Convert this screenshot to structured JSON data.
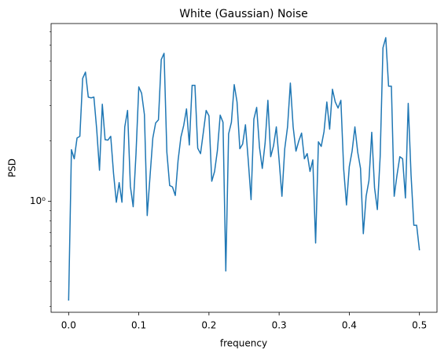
{
  "chart_data": {
    "type": "line",
    "title": "White (Gaussian) Noise",
    "xlabel": "frequency",
    "ylabel": "PSD",
    "yscale": "log",
    "color": "#1f77b4",
    "xlim": [
      -0.025,
      0.525
    ],
    "xticks": [
      {
        "value": 0,
        "label": "0.0"
      },
      0.1,
      0.2,
      0.3,
      0.4,
      0.5
    ],
    "ylim": [
      0.28,
      7.7
    ],
    "yticks": [
      {
        "value": 1,
        "label": "10⁰"
      }
    ],
    "yminorticks": [
      0.3,
      0.4,
      0.5,
      0.6,
      0.7,
      0.8,
      0.9,
      2,
      3,
      4,
      5,
      6,
      7
    ],
    "x": [
      0,
      0.004,
      0.008,
      0.012,
      0.016,
      0.02,
      0.024,
      0.028,
      0.032,
      0.036,
      0.04,
      0.044,
      0.048,
      0.052,
      0.056,
      0.06,
      0.064,
      0.068,
      0.072,
      0.076,
      0.08,
      0.084,
      0.088,
      0.092,
      0.096,
      0.1,
      0.104,
      0.108,
      0.112,
      0.116,
      0.12,
      0.124,
      0.128,
      0.132,
      0.136,
      0.14,
      0.144,
      0.148,
      0.152,
      0.156,
      0.16,
      0.164,
      0.168,
      0.172,
      0.176,
      0.18,
      0.184,
      0.188,
      0.192,
      0.196,
      0.2,
      0.204,
      0.208,
      0.212,
      0.216,
      0.22,
      0.224,
      0.228,
      0.232,
      0.236,
      0.24,
      0.244,
      0.248,
      0.252,
      0.256,
      0.26,
      0.264,
      0.268,
      0.272,
      0.276,
      0.28,
      0.284,
      0.288,
      0.292,
      0.296,
      0.3,
      0.304,
      0.308,
      0.312,
      0.316,
      0.32,
      0.324,
      0.328,
      0.332,
      0.336,
      0.34,
      0.344,
      0.348,
      0.352,
      0.356,
      0.36,
      0.364,
      0.368,
      0.372,
      0.376,
      0.38,
      0.384,
      0.388,
      0.392,
      0.396,
      0.4,
      0.404,
      0.408,
      0.412,
      0.416,
      0.42,
      0.424,
      0.428,
      0.432,
      0.436,
      0.44,
      0.444,
      0.448,
      0.452,
      0.456,
      0.46,
      0.464,
      0.468,
      0.472,
      0.476,
      0.48,
      0.484,
      0.488,
      0.492,
      0.496,
      0.5
    ],
    "values": [
      0.32,
      1.81,
      1.63,
      2.07,
      2.11,
      4.1,
      4.41,
      3.31,
      3.28,
      3.31,
      2.29,
      1.43,
      3.05,
      2.03,
      2.02,
      2.11,
      1.38,
      0.99,
      1.24,
      0.99,
      2.35,
      2.84,
      1.19,
      0.94,
      1.72,
      3.72,
      3.46,
      2.71,
      0.85,
      1.33,
      2.07,
      2.46,
      2.55,
      5.09,
      5.47,
      1.76,
      1.2,
      1.18,
      1.07,
      1.6,
      2.09,
      2.39,
      2.89,
      1.91,
      3.79,
      3.79,
      1.84,
      1.73,
      2.21,
      2.84,
      2.67,
      1.26,
      1.41,
      1.79,
      2.69,
      2.48,
      0.45,
      2.17,
      2.48,
      3.82,
      3.13,
      1.83,
      1.93,
      2.41,
      1.6,
      1.02,
      2.57,
      2.94,
      1.86,
      1.46,
      1.95,
      3.19,
      1.67,
      1.89,
      2.35,
      1.6,
      1.06,
      1.83,
      2.35,
      3.89,
      2.35,
      1.78,
      2.0,
      2.19,
      1.63,
      1.73,
      1.41,
      1.61,
      0.62,
      1.98,
      1.88,
      2.23,
      3.13,
      2.29,
      3.62,
      3.13,
      2.92,
      3.19,
      1.45,
      0.96,
      1.49,
      1.78,
      2.35,
      1.76,
      1.46,
      0.69,
      1.06,
      1.27,
      2.21,
      1.17,
      0.91,
      1.67,
      5.83,
      6.55,
      3.75,
      3.75,
      1.06,
      1.35,
      1.67,
      1.63,
      1.04,
      3.08,
      1.36,
      0.76,
      0.76,
      0.57
    ]
  }
}
